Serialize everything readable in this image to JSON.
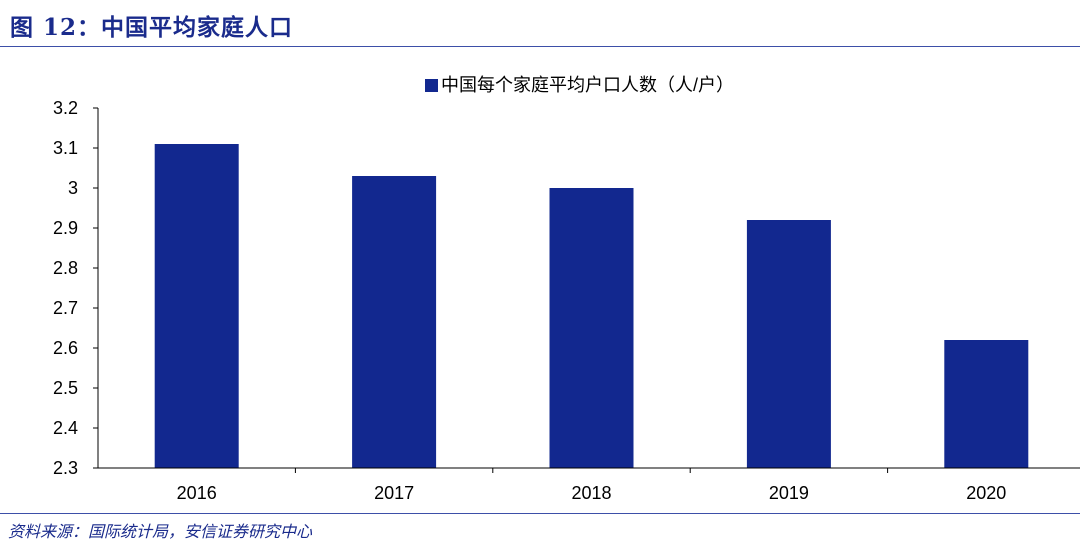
{
  "figure": {
    "title": "图 12：中国平均家庭人口",
    "source": "资料来源：国际统计局，安信证券研究中心"
  },
  "colors": {
    "bar": "#12288f",
    "title": "#1a2b8c",
    "axis": "#000000"
  },
  "chart_data": {
    "type": "bar",
    "categories": [
      "2016",
      "2017",
      "2018",
      "2019",
      "2020"
    ],
    "series": [
      {
        "name": "中国每个家庭平均户口人数（人/户）",
        "values": [
          3.11,
          3.03,
          3.0,
          2.92,
          2.62
        ]
      }
    ],
    "ylim": [
      2.3,
      3.2
    ],
    "yticks": [
      "3.2",
      "3.1",
      "3",
      "2.9",
      "2.8",
      "2.7",
      "2.6",
      "2.5",
      "2.4",
      "2.3"
    ],
    "grid": false,
    "legend": "top-center",
    "xlabel": "",
    "ylabel": ""
  }
}
